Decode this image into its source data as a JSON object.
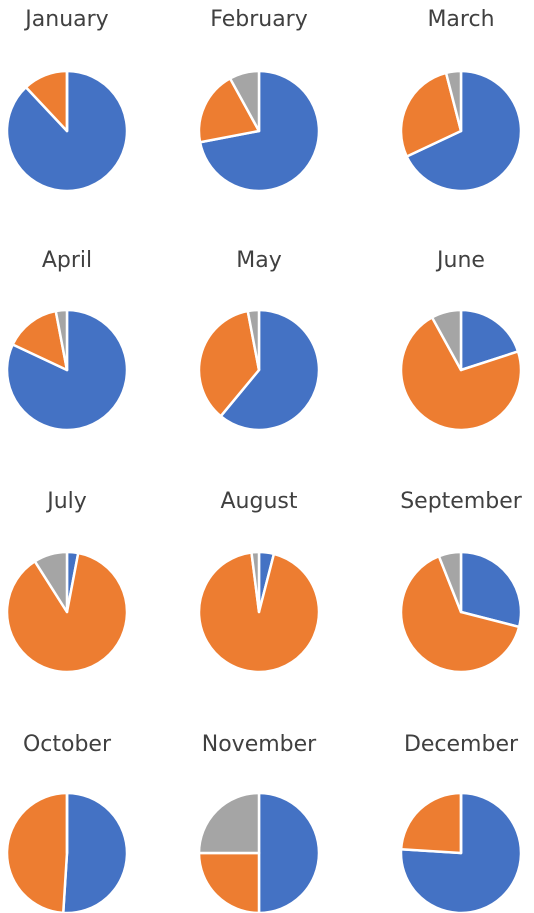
{
  "chart_data": [
    {
      "type": "pie",
      "title": "January",
      "values": [
        88,
        12,
        0
      ],
      "colors": [
        "#4472c4",
        "#ed7d31",
        "#a5a5a5"
      ]
    },
    {
      "type": "pie",
      "title": "February",
      "values": [
        72,
        20,
        8
      ],
      "colors": [
        "#4472c4",
        "#ed7d31",
        "#a5a5a5"
      ]
    },
    {
      "type": "pie",
      "title": "March",
      "values": [
        68,
        28,
        4
      ],
      "colors": [
        "#4472c4",
        "#ed7d31",
        "#a5a5a5"
      ]
    },
    {
      "type": "pie",
      "title": "April",
      "values": [
        82,
        15,
        3
      ],
      "colors": [
        "#4472c4",
        "#ed7d31",
        "#a5a5a5"
      ]
    },
    {
      "type": "pie",
      "title": "May",
      "values": [
        61,
        36,
        3
      ],
      "colors": [
        "#4472c4",
        "#ed7d31",
        "#a5a5a5"
      ]
    },
    {
      "type": "pie",
      "title": "June",
      "values": [
        20,
        72,
        8
      ],
      "colors": [
        "#4472c4",
        "#ed7d31",
        "#a5a5a5"
      ]
    },
    {
      "type": "pie",
      "title": "July",
      "values": [
        3,
        88,
        9
      ],
      "colors": [
        "#4472c4",
        "#ed7d31",
        "#a5a5a5"
      ]
    },
    {
      "type": "pie",
      "title": "August",
      "values": [
        4,
        94,
        2
      ],
      "colors": [
        "#4472c4",
        "#ed7d31",
        "#a5a5a5"
      ]
    },
    {
      "type": "pie",
      "title": "September",
      "values": [
        29,
        65,
        6
      ],
      "colors": [
        "#4472c4",
        "#ed7d31",
        "#a5a5a5"
      ]
    },
    {
      "type": "pie",
      "title": "October",
      "values": [
        51,
        49,
        0
      ],
      "colors": [
        "#4472c4",
        "#ed7d31",
        "#a5a5a5"
      ]
    },
    {
      "type": "pie",
      "title": "November",
      "values": [
        50,
        25,
        25
      ],
      "colors": [
        "#4472c4",
        "#ed7d31",
        "#a5a5a5"
      ]
    },
    {
      "type": "pie",
      "title": "December",
      "values": [
        76,
        24,
        0
      ],
      "colors": [
        "#4472c4",
        "#ed7d31",
        "#a5a5a5"
      ]
    }
  ]
}
